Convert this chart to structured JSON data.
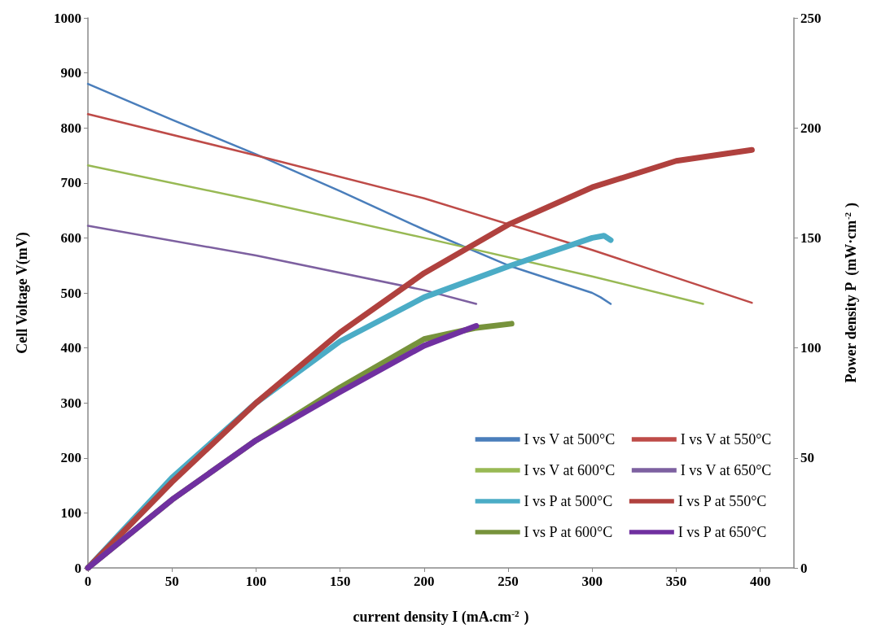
{
  "chart_data": {
    "type": "line",
    "xlabel": "current density I (mA.cm$^{-2}$)",
    "ylabel": "Cell Voltage V(mV)",
    "y2label": "Power density P  (mW·cm$^{-2}$)",
    "xlim": [
      0,
      420
    ],
    "xticks": [
      0,
      50,
      100,
      150,
      200,
      250,
      300,
      350,
      400
    ],
    "ylim": [
      0,
      1000
    ],
    "yticks": [
      0,
      100,
      200,
      300,
      400,
      500,
      600,
      700,
      800,
      900,
      1000
    ],
    "y2lim": [
      0,
      250
    ],
    "y2ticks": [
      0,
      50,
      100,
      150,
      200,
      250
    ],
    "grid": false,
    "legend": "bottom right",
    "marker": "none",
    "line_style": "solid",
    "series": [
      {
        "name": "I vs V at 500°C",
        "color": "#4a7ebb",
        "x": [
          0,
          50,
          100,
          150,
          200,
          250,
          300,
          305,
          311
        ],
        "values": [
          880,
          815,
          752,
          685,
          615,
          550,
          500,
          492,
          480
        ]
      },
      {
        "name": "I vs V at 550°C",
        "color": "#be4b48",
        "x": [
          0,
          100,
          200,
          300,
          395
        ],
        "values": [
          825,
          750,
          672,
          578,
          482
        ]
      },
      {
        "name": "I vs V at 600°C",
        "color": "#98b954",
        "x": [
          0,
          100,
          200,
          300,
          366
        ],
        "values": [
          732,
          668,
          600,
          530,
          480
        ]
      },
      {
        "name": "I vs V at 650°C",
        "color": "#7d60a0",
        "x": [
          0,
          100,
          200,
          231
        ],
        "values": [
          622,
          568,
          505,
          480
        ]
      },
      {
        "name": "I vs P at 500°C",
        "color": "#4bacc6",
        "axis": "y2",
        "x": [
          0,
          50,
          100,
          150,
          200,
          250,
          300,
          307,
          311
        ],
        "values": [
          0,
          41,
          75,
          103,
          123,
          137,
          150,
          151,
          149
        ]
      },
      {
        "name": "I vs P at 550°C",
        "color": "#b0413e",
        "axis": "y2",
        "x": [
          0,
          50,
          100,
          150,
          200,
          250,
          300,
          350,
          395
        ],
        "values": [
          0,
          39,
          75,
          107,
          134,
          156,
          173,
          185,
          190
        ]
      },
      {
        "name": "I vs P at 600°C",
        "color": "#77933c",
        "axis": "y2",
        "x": [
          0,
          50,
          100,
          150,
          200,
          230,
          252
        ],
        "values": [
          0,
          31,
          58,
          82,
          104,
          109,
          111
        ]
      },
      {
        "name": "I vs P at 650°C",
        "color": "#7030a0",
        "axis": "y2",
        "x": [
          0,
          50,
          100,
          150,
          200,
          231
        ],
        "values": [
          0,
          31,
          58,
          80,
          101,
          110
        ]
      }
    ]
  }
}
